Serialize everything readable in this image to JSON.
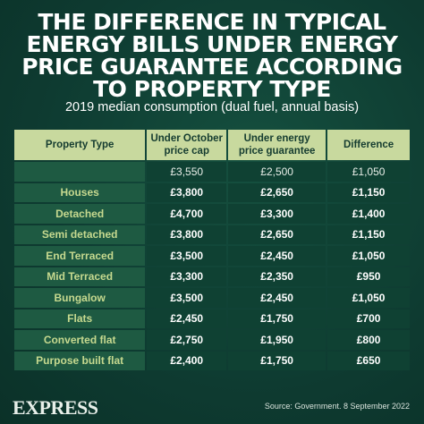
{
  "title_lines": [
    "THE DIFFERENCE IN TYPICAL",
    "ENERGY BILLS UNDER ENERGY",
    "PRICE GUARANTEE ACCORDING",
    "TO PROPERTY TYPE"
  ],
  "subtitle": "2019 median consumption (dual fuel, annual basis)",
  "table": {
    "headers": [
      "Property Type",
      "Under October price cap",
      "Under energy price guarantee",
      "Difference"
    ],
    "reference_row": [
      "",
      "£3,550",
      "£2,500",
      "£1,050"
    ],
    "rows": [
      [
        "Houses",
        "£3,800",
        "£2,650",
        "£1,150"
      ],
      [
        "Detached",
        "£4,700",
        "£3,300",
        "£1,400"
      ],
      [
        "Semi detached",
        "£3,800",
        "£2,650",
        "£1,150"
      ],
      [
        "End Terraced",
        "£3,500",
        "£2,450",
        "£1,050"
      ],
      [
        "Mid Terraced",
        "£3,300",
        "£2,350",
        "£950"
      ],
      [
        "Bungalow",
        "£3,500",
        "£2,450",
        "£1,050"
      ],
      [
        "Flats",
        "£2,450",
        "£1,750",
        "£700"
      ],
      [
        "Converted flat",
        "£2,750",
        "£1,950",
        "£800"
      ],
      [
        "Purpose built flat",
        "£2,400",
        "£1,750",
        "£650"
      ]
    ]
  },
  "logo": "EXPRESS",
  "source": "Source: Government. 8 September 2022",
  "colors": {
    "background": "#0f3d33",
    "header": "#c8d99e",
    "category": "#1e5a42",
    "accent_text": "#c6d98f"
  }
}
